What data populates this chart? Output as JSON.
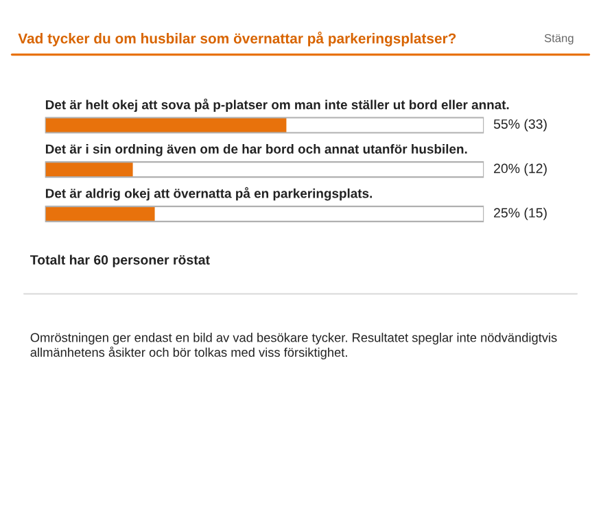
{
  "chart_data": {
    "type": "bar",
    "orientation": "horizontal",
    "title": "Vad tycker du om husbilar som övernattar på parkeringsplatser?",
    "categories": [
      "Det är helt okej att sova på p-platser om man inte ställer ut bord eller annat.",
      "Det är i sin ordning även om de har bord och annat utanför husbilen.",
      "Det är aldrig okej att övernatta på en parkeringsplats."
    ],
    "values": [
      55,
      20,
      25
    ],
    "value_labels": [
      "55% (33)",
      "20% (12)",
      "25% (15)"
    ],
    "color": "#e8720c",
    "xlim": [
      0,
      100
    ],
    "tick_labels": false,
    "annotations": [
      "Stäng",
      "Totalt har 60 personer röstat",
      "Omröstningen ger endast en bild av vad besökare tycker. Resultatet speglar inte nödvändigtvis allmänhetens åsikter och bör tolkas med viss försiktighet."
    ]
  }
}
